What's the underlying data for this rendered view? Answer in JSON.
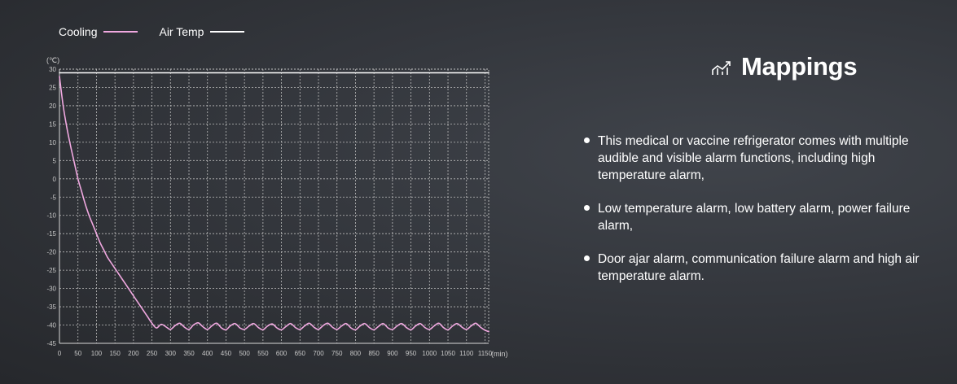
{
  "legend": [
    {
      "label": "Cooling",
      "color": "#f0a8e0"
    },
    {
      "label": "Air Temp",
      "color": "#ffffff"
    }
  ],
  "chart_data": {
    "type": "line",
    "title": "",
    "xlabel": "",
    "ylabel": "",
    "y_unit": "(℃)",
    "x_unit": "(min)",
    "xlim": [
      0,
      1160
    ],
    "ylim": [
      -45,
      30
    ],
    "grid": true,
    "legend_position": "top-left",
    "x_ticks": [
      0,
      50,
      100,
      150,
      200,
      250,
      300,
      350,
      400,
      450,
      500,
      550,
      600,
      650,
      700,
      750,
      800,
      850,
      900,
      950,
      1000,
      1050,
      1100,
      1150
    ],
    "y_ticks": [
      30,
      25,
      20,
      15,
      10,
      5,
      0,
      -5,
      -10,
      -15,
      -20,
      -25,
      -30,
      -35,
      -40,
      -45
    ],
    "series": [
      {
        "name": "Cooling",
        "color": "#f0a8e0",
        "x": [
          0,
          10,
          20,
          30,
          40,
          50,
          60,
          70,
          80,
          90,
          100,
          110,
          120,
          130,
          140,
          150,
          160,
          170,
          180,
          190,
          200,
          210,
          220,
          230,
          240,
          250,
          262,
          275,
          288,
          300,
          312,
          325,
          338,
          350,
          362,
          375,
          388,
          400,
          412,
          425,
          438,
          450,
          462,
          475,
          488,
          500,
          512,
          525,
          538,
          550,
          562,
          575,
          588,
          600,
          612,
          625,
          638,
          650,
          662,
          675,
          688,
          700,
          712,
          725,
          738,
          750,
          762,
          775,
          788,
          800,
          812,
          825,
          838,
          850,
          862,
          875,
          888,
          900,
          912,
          925,
          938,
          950,
          962,
          975,
          988,
          1000,
          1012,
          1025,
          1038,
          1050,
          1062,
          1075,
          1088,
          1100,
          1112,
          1125,
          1138,
          1150,
          1160
        ],
        "y": [
          28,
          20,
          14,
          9,
          4.5,
          0,
          -3.5,
          -7,
          -10,
          -12.5,
          -15,
          -17.5,
          -19.5,
          -21.5,
          -23,
          -24.5,
          -26,
          -27.5,
          -29,
          -30.5,
          -32,
          -33.5,
          -35,
          -36.5,
          -38,
          -39.5,
          -40.8,
          -39.8,
          -40.5,
          -41.2,
          -40.2,
          -39.5,
          -40.6,
          -41.2,
          -40,
          -39.4,
          -40.5,
          -41.2,
          -40.2,
          -39.5,
          -40.8,
          -41.3,
          -40.2,
          -39.6,
          -40.8,
          -41.2,
          -40.3,
          -39.6,
          -40.7,
          -41.3,
          -40.3,
          -39.7,
          -40.8,
          -41.3,
          -40.4,
          -39.6,
          -40.7,
          -41.2,
          -40.3,
          -39.5,
          -40.6,
          -41.2,
          -40.2,
          -39.5,
          -40.6,
          -41.2,
          -40.3,
          -39.6,
          -40.8,
          -41.3,
          -40.3,
          -39.6,
          -40.7,
          -41.3,
          -40.4,
          -39.6,
          -40.8,
          -41.2,
          -40.3,
          -39.6,
          -40.7,
          -41.3,
          -40.3,
          -39.6,
          -40.7,
          -41.2,
          -40.3,
          -39.5,
          -40.7,
          -41.3,
          -40.3,
          -39.6,
          -40.6,
          -41.2,
          -40.3,
          -39.5,
          -40.6,
          -41.4,
          -41.8
        ]
      },
      {
        "name": "Air Temp",
        "color": "#ffffff",
        "x": [
          0,
          1160
        ],
        "y": [
          29,
          29
        ]
      }
    ]
  },
  "panel": {
    "title": "Mappings",
    "icon": "chart-trend-icon",
    "bullets": [
      "This medical or vaccine refrigerator comes with multiple audible and visible alarm functions, including high temperature alarm,",
      "Low temperature alarm, low battery alarm, power failure alarm,",
      "Door ajar alarm, communication failure alarm and high air temperature alarm."
    ]
  }
}
